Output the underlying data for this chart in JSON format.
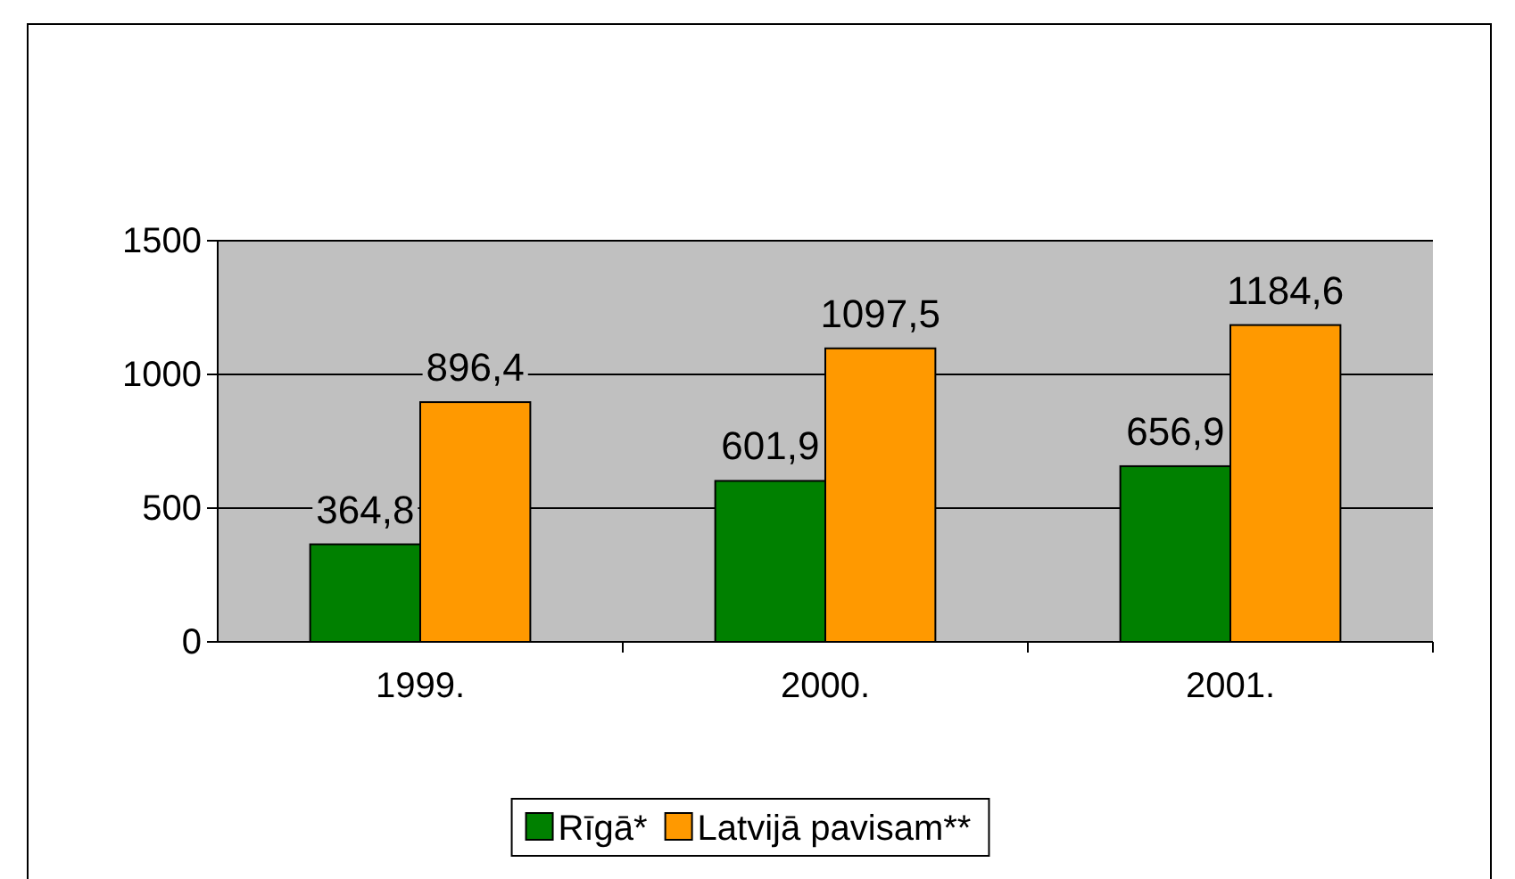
{
  "chart_data": {
    "type": "bar",
    "categories": [
      "1999.",
      "2000.",
      "2001."
    ],
    "series": [
      {
        "name": "Rīgā*",
        "color": "#008000",
        "values": [
          364.8,
          601.9,
          656.9
        ],
        "value_labels": [
          "364,8",
          "601,9",
          "656,9"
        ]
      },
      {
        "name": "Latvijā pavisam**",
        "color": "#ff9900",
        "values": [
          896.4,
          1097.5,
          1184.6
        ],
        "value_labels": [
          "896,4",
          "1097,5",
          "1184,6"
        ]
      }
    ],
    "ylim": [
      0,
      1500
    ],
    "yticks": [
      0,
      500,
      1000,
      1500
    ],
    "grid": "y",
    "legend": "bottom"
  }
}
